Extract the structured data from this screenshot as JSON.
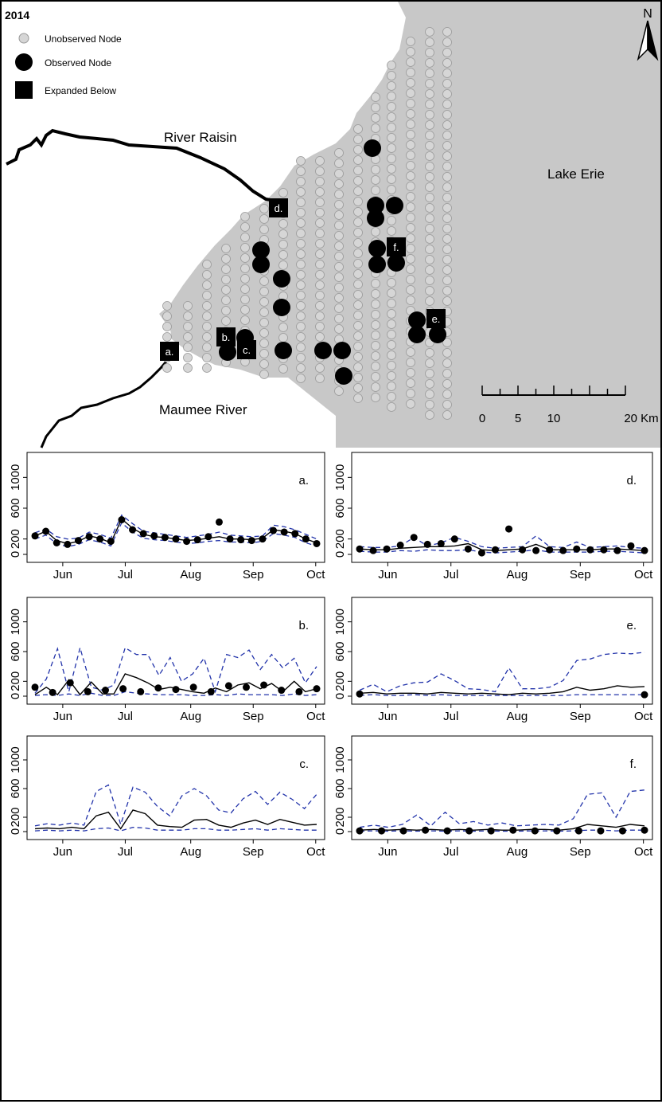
{
  "map": {
    "year": "2014",
    "legend": {
      "unobserved": "Unobserved Node",
      "observed": "Observed Node",
      "expanded": "Expanded Below"
    },
    "labels": {
      "river_raisin": "River Raisin",
      "maumee": "Maumee River",
      "lake_erie": "Lake Erie",
      "north": "N"
    },
    "scalebar": {
      "ticks": [
        "0",
        "5",
        "10",
        "20 Km"
      ]
    },
    "markers": [
      "a.",
      "b.",
      "c.",
      "d.",
      "e.",
      "f."
    ],
    "colors": {
      "water": "#c8c8c8",
      "node": "#d6d6d6",
      "observed": "#000000",
      "river": "#000000"
    }
  },
  "chart_data": [
    {
      "type": "line",
      "panel": "a.",
      "x_ticks": [
        "Jun",
        "Jul",
        "Aug",
        "Sep",
        "Oct"
      ],
      "y_ticks": [
        "0",
        "200",
        "600",
        "1000"
      ],
      "ylim": [
        0,
        1200
      ],
      "series": [
        {
          "values": [
            240,
            300,
            180,
            140,
            170,
            240,
            210,
            150,
            460,
            340,
            260,
            230,
            220,
            200,
            180,
            190,
            210,
            230,
            200,
            200,
            190,
            210,
            320,
            300,
            270,
            200,
            150
          ]
        },
        {
          "values": [
            280,
            330,
            230,
            200,
            210,
            290,
            260,
            210,
            510,
            400,
            300,
            280,
            260,
            240,
            220,
            240,
            260,
            290,
            250,
            240,
            230,
            240,
            380,
            360,
            320,
            260,
            200
          ]
        },
        {
          "values": [
            200,
            250,
            140,
            100,
            130,
            190,
            160,
            110,
            410,
            290,
            210,
            190,
            180,
            160,
            140,
            150,
            170,
            180,
            160,
            160,
            150,
            170,
            270,
            250,
            220,
            150,
            110
          ]
        }
      ],
      "observed_points": [
        240,
        300,
        150,
        130,
        180,
        230,
        200,
        170,
        450,
        320,
        270,
        240,
        220,
        200,
        170,
        190,
        230,
        420,
        200,
        190,
        180,
        200,
        310,
        290,
        270,
        200,
        140
      ]
    },
    {
      "type": "line",
      "panel": "d.",
      "x_ticks": [
        "Jun",
        "Jul",
        "Aug",
        "Sep",
        "Oct"
      ],
      "y_ticks": [
        "0",
        "200",
        "600",
        "1000"
      ],
      "ylim": [
        0,
        1200
      ],
      "series": [
        {
          "values": [
            70,
            60,
            60,
            80,
            90,
            100,
            100,
            110,
            140,
            60,
            50,
            60,
            70,
            130,
            60,
            60,
            60,
            60,
            70,
            70,
            60,
            50
          ]
        },
        {
          "values": [
            100,
            90,
            90,
            110,
            220,
            110,
            150,
            220,
            170,
            100,
            80,
            90,
            100,
            240,
            100,
            90,
            160,
            90,
            100,
            110,
            90,
            80
          ]
        },
        {
          "values": [
            40,
            30,
            30,
            50,
            40,
            60,
            50,
            50,
            60,
            30,
            20,
            30,
            40,
            60,
            30,
            30,
            30,
            30,
            40,
            40,
            30,
            20
          ]
        }
      ],
      "observed_points": [
        70,
        50,
        70,
        120,
        220,
        130,
        140,
        200,
        70,
        20,
        60,
        330,
        60,
        50,
        60,
        50,
        70,
        60,
        60,
        50,
        110,
        50
      ]
    },
    {
      "type": "line",
      "panel": "b.",
      "x_ticks": [
        "Jun",
        "Jul",
        "Aug",
        "Sep",
        "Oct"
      ],
      "y_ticks": [
        "0",
        "200",
        "600",
        "1000"
      ],
      "ylim": [
        0,
        1200
      ],
      "series": [
        {
          "values": [
            20,
            120,
            20,
            220,
            20,
            190,
            30,
            30,
            300,
            250,
            180,
            90,
            120,
            90,
            60,
            40,
            110,
            60,
            150,
            180,
            100,
            170,
            60,
            200,
            60,
            100
          ]
        },
        {
          "values": [
            40,
            230,
            640,
            60,
            650,
            120,
            80,
            150,
            650,
            560,
            560,
            280,
            520,
            200,
            300,
            510,
            60,
            560,
            520,
            620,
            360,
            560,
            380,
            510,
            180,
            400
          ]
        },
        {
          "values": [
            10,
            20,
            10,
            30,
            10,
            40,
            10,
            10,
            60,
            40,
            30,
            20,
            20,
            20,
            10,
            10,
            20,
            10,
            30,
            20,
            20,
            20,
            10,
            30,
            10,
            20
          ]
        }
      ],
      "observed_points": [
        120,
        50,
        180,
        60,
        80,
        100,
        60,
        110,
        90,
        120,
        60,
        140,
        120,
        150,
        80,
        60,
        100
      ]
    },
    {
      "type": "line",
      "panel": "e.",
      "x_ticks": [
        "Jun",
        "Jul",
        "Aug",
        "Sep",
        "Oct"
      ],
      "y_ticks": [
        "0",
        "200",
        "600",
        "1000"
      ],
      "ylim": [
        0,
        1200
      ],
      "series": [
        {
          "values": [
            40,
            50,
            30,
            40,
            40,
            30,
            50,
            40,
            30,
            40,
            30,
            20,
            40,
            30,
            40,
            60,
            120,
            80,
            100,
            140,
            120,
            130
          ]
        },
        {
          "values": [
            80,
            160,
            60,
            140,
            180,
            190,
            300,
            210,
            100,
            90,
            60,
            380,
            100,
            100,
            120,
            210,
            480,
            500,
            560,
            580,
            570,
            590
          ]
        },
        {
          "values": [
            10,
            20,
            10,
            10,
            20,
            10,
            20,
            10,
            10,
            10,
            10,
            10,
            10,
            10,
            10,
            10,
            20,
            20,
            20,
            20,
            20,
            20
          ]
        }
      ],
      "observed_points": [
        30,
        20
      ]
    },
    {
      "type": "line",
      "panel": "c.",
      "x_ticks": [
        "Jun",
        "Jul",
        "Aug",
        "Sep",
        "Oct"
      ],
      "y_ticks": [
        "0",
        "200",
        "600",
        "1000"
      ],
      "ylim": [
        0,
        1200
      ],
      "series": [
        {
          "values": [
            40,
            50,
            40,
            60,
            40,
            220,
            270,
            40,
            300,
            250,
            90,
            70,
            60,
            160,
            170,
            90,
            60,
            120,
            160,
            100,
            170,
            130,
            90,
            100
          ]
        },
        {
          "values": [
            80,
            110,
            90,
            120,
            90,
            560,
            650,
            100,
            620,
            550,
            350,
            220,
            500,
            600,
            500,
            300,
            260,
            460,
            560,
            380,
            550,
            450,
            320,
            520
          ]
        },
        {
          "values": [
            10,
            20,
            10,
            20,
            10,
            40,
            50,
            10,
            60,
            50,
            20,
            20,
            20,
            40,
            40,
            20,
            20,
            30,
            40,
            20,
            40,
            30,
            20,
            20
          ]
        }
      ]
    },
    {
      "type": "line",
      "panel": "f.",
      "x_ticks": [
        "Jun",
        "Jul",
        "Aug",
        "Sep",
        "Oct"
      ],
      "y_ticks": [
        "0",
        "200",
        "600",
        "1000"
      ],
      "ylim": [
        0,
        1200
      ],
      "series": [
        {
          "values": [
            20,
            30,
            20,
            30,
            20,
            30,
            20,
            30,
            20,
            30,
            20,
            20,
            30,
            30,
            20,
            40,
            100,
            80,
            60,
            100,
            80
          ]
        },
        {
          "values": [
            60,
            90,
            60,
            100,
            230,
            80,
            270,
            110,
            140,
            90,
            120,
            80,
            90,
            100,
            90,
            180,
            520,
            540,
            200,
            560,
            580
          ]
        },
        {
          "values": [
            5,
            10,
            5,
            10,
            5,
            10,
            5,
            10,
            5,
            10,
            5,
            5,
            10,
            10,
            5,
            10,
            20,
            20,
            10,
            20,
            20
          ]
        }
      ],
      "observed_points": [
        10,
        10,
        10,
        20,
        10,
        10,
        10,
        20,
        10,
        10,
        10,
        10,
        10,
        20
      ]
    }
  ]
}
